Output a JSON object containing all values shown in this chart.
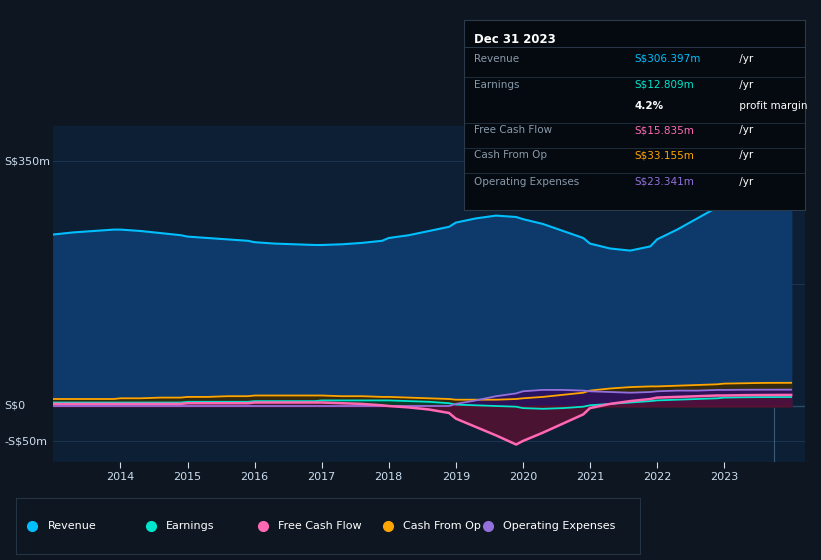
{
  "bg_color": "#0e1621",
  "plot_bg_color": "#0d1f35",
  "grid_color": "#1a3050",
  "x_ticks": [
    2014,
    2015,
    2016,
    2017,
    2018,
    2019,
    2020,
    2021,
    2022,
    2023
  ],
  "ylim": [
    -80,
    400
  ],
  "xlim_start": 2013.0,
  "xlim_end": 2024.2,
  "y_labels": [
    {
      "text": "S$350m",
      "value": 350
    },
    {
      "text": "S$0",
      "value": 0
    },
    {
      "text": "-S$50m",
      "value": -50
    }
  ],
  "legend": [
    {
      "label": "Revenue",
      "color": "#00bfff"
    },
    {
      "label": "Earnings",
      "color": "#00e5cc"
    },
    {
      "label": "Free Cash Flow",
      "color": "#ff69b4"
    },
    {
      "label": "Cash From Op",
      "color": "#ffa500"
    },
    {
      "label": "Operating Expenses",
      "color": "#9370db"
    }
  ],
  "infobox": {
    "title": "Dec 31 2023",
    "rows": [
      {
        "label": "Revenue",
        "val_colored": "S$306.397m",
        "val_suffix": " /yr",
        "color": "#00bfff",
        "divider_after": true
      },
      {
        "label": "Earnings",
        "val_colored": "S$12.809m",
        "val_suffix": " /yr",
        "color": "#00e5cc",
        "divider_after": false
      },
      {
        "label": "",
        "val_colored": "4.2%",
        "val_suffix": " profit margin",
        "color": "#ffffff",
        "bold": true,
        "divider_after": true
      },
      {
        "label": "Free Cash Flow",
        "val_colored": "S$15.835m",
        "val_suffix": " /yr",
        "color": "#ff69b4",
        "divider_after": true
      },
      {
        "label": "Cash From Op",
        "val_colored": "S$33.155m",
        "val_suffix": " /yr",
        "color": "#ffa500",
        "divider_after": true
      },
      {
        "label": "Operating Expenses",
        "val_colored": "S$23.341m",
        "val_suffix": " /yr",
        "color": "#9370db",
        "divider_after": false
      }
    ]
  },
  "series": {
    "years": [
      2013.0,
      2013.3,
      2013.6,
      2013.9,
      2014.0,
      2014.3,
      2014.6,
      2014.9,
      2015.0,
      2015.3,
      2015.6,
      2015.9,
      2016.0,
      2016.3,
      2016.6,
      2016.9,
      2017.0,
      2017.3,
      2017.6,
      2017.9,
      2018.0,
      2018.3,
      2018.6,
      2018.9,
      2019.0,
      2019.3,
      2019.6,
      2019.9,
      2020.0,
      2020.3,
      2020.6,
      2020.9,
      2021.0,
      2021.3,
      2021.6,
      2021.9,
      2022.0,
      2022.3,
      2022.6,
      2022.9,
      2023.0,
      2023.3,
      2023.6,
      2023.9,
      2024.0
    ],
    "revenue": [
      245,
      248,
      250,
      252,
      252,
      250,
      247,
      244,
      242,
      240,
      238,
      236,
      234,
      232,
      231,
      230,
      230,
      231,
      233,
      236,
      240,
      244,
      250,
      256,
      262,
      268,
      272,
      270,
      267,
      260,
      250,
      240,
      232,
      225,
      222,
      228,
      238,
      252,
      268,
      284,
      295,
      300,
      303,
      305,
      306
    ],
    "earnings": [
      5,
      5,
      5,
      5,
      5,
      5,
      5,
      5,
      6,
      6,
      6,
      6,
      7,
      7,
      7,
      7,
      8,
      8,
      8,
      8,
      8,
      7,
      6,
      4,
      2,
      1,
      0,
      -1,
      -3,
      -4,
      -3,
      -1,
      1,
      3,
      5,
      7,
      8,
      9,
      10,
      11,
      12,
      12.5,
      12.7,
      12.8,
      12.809
    ],
    "free_cash_flow": [
      3,
      3,
      3,
      3,
      3,
      3,
      3,
      3,
      4,
      4,
      4,
      4,
      5,
      5,
      5,
      5,
      5,
      4,
      3,
      1,
      0,
      -2,
      -5,
      -10,
      -18,
      -30,
      -42,
      -55,
      -50,
      -38,
      -25,
      -12,
      -3,
      3,
      7,
      10,
      12,
      13,
      14,
      15,
      15,
      15.5,
      15.7,
      15.8,
      15.835
    ],
    "cash_from_op": [
      10,
      10,
      10,
      10,
      11,
      11,
      12,
      12,
      13,
      13,
      14,
      14,
      15,
      15,
      15,
      15,
      15,
      14,
      14,
      13,
      13,
      12,
      11,
      10,
      9,
      9,
      9,
      10,
      11,
      13,
      16,
      19,
      22,
      25,
      27,
      28,
      28,
      29,
      30,
      31,
      32,
      32.5,
      33,
      33.1,
      33.155
    ],
    "operating_expenses": [
      0,
      0,
      0,
      0,
      0,
      0,
      0,
      0,
      0,
      0,
      0,
      0,
      0,
      0,
      0,
      0,
      0,
      0,
      0,
      0,
      0,
      0,
      0,
      0,
      3,
      8,
      14,
      18,
      21,
      23,
      23,
      22,
      21,
      20,
      19,
      20,
      21,
      22,
      22,
      23,
      23,
      23.2,
      23.3,
      23.34,
      23.341
    ]
  }
}
